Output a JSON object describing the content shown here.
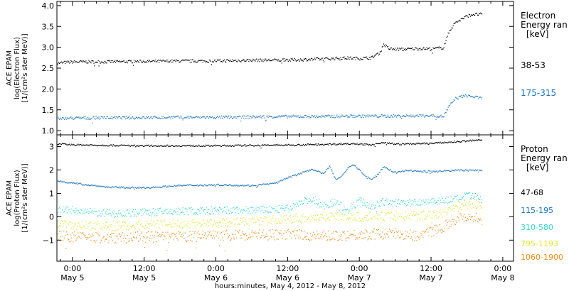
{
  "chart_data": {
    "type": "scatter",
    "xaxis": {
      "title": "hours:minutes, May  4, 2012 - May  8, 2012",
      "ticks": [
        {
          "t": 0,
          "time": "0:00",
          "day": "May 5"
        },
        {
          "t": 12,
          "time": "12:00",
          "day": "May 5"
        },
        {
          "t": 24,
          "time": "0:00",
          "day": "May 6"
        },
        {
          "t": 36,
          "time": "12:00",
          "day": "May 6"
        },
        {
          "t": 48,
          "time": "0:00",
          "day": "May 7"
        },
        {
          "t": 60,
          "time": "12:00",
          "day": "May 7"
        },
        {
          "t": 72,
          "time": "0:00",
          "day": "May 8"
        }
      ],
      "xlim_hours_from_may5": [
        -2.6,
        73.8
      ]
    },
    "panels": [
      {
        "id": "electron",
        "ylabel": [
          "ACE EPAM",
          "log(Electron Flux)",
          "[1/(cm²s ster MeV)]"
        ],
        "ylim": [
          0.9,
          4.1
        ],
        "yticks": [
          "1.0",
          "1.5",
          "2.0",
          "2.5",
          "3.0",
          "3.5",
          "4.0"
        ],
        "ytick_values": [
          1.0,
          1.5,
          2.0,
          2.5,
          3.0,
          3.5,
          4.0
        ],
        "legend_title": [
          "Electron",
          "Energy ran",
          "[keV]"
        ],
        "series": [
          {
            "name": "38-53",
            "color": "#000000",
            "x": [
              -2.6,
              0,
              6,
              12,
              18,
              24,
              30,
              36,
              42,
              45,
              46.5,
              48,
              50,
              51.5,
              52,
              53,
              55,
              58,
              60,
              62,
              63,
              64,
              65,
              66,
              67,
              68.5
            ],
            "y": [
              2.63,
              2.66,
              2.66,
              2.67,
              2.68,
              2.68,
              2.7,
              2.7,
              2.73,
              2.75,
              2.75,
              2.74,
              2.76,
              2.9,
              3.08,
              2.97,
              2.96,
              2.98,
              2.97,
              3.0,
              3.4,
              3.6,
              3.68,
              3.76,
              3.8,
              3.8
            ]
          },
          {
            "name": "175-315",
            "color": "#1c75c4",
            "x": [
              -2.6,
              0,
              6,
              12,
              18,
              24,
              30,
              36,
              42,
              48,
              54,
              60,
              62,
              63,
              64,
              65,
              66,
              68.5
            ],
            "y": [
              1.3,
              1.31,
              1.32,
              1.32,
              1.33,
              1.33,
              1.34,
              1.35,
              1.35,
              1.36,
              1.36,
              1.37,
              1.35,
              1.6,
              1.78,
              1.83,
              1.85,
              1.78
            ]
          }
        ]
      },
      {
        "id": "proton",
        "ylabel": [
          "ACE EPAM",
          "log(Proton Flux)",
          "[1/(cm²s ster MeV)]"
        ],
        "ylim": [
          -1.9,
          3.5
        ],
        "yticks": [
          "−1",
          "0",
          "1",
          "2",
          "3"
        ],
        "ytick_values": [
          -1,
          0,
          1,
          2,
          3
        ],
        "legend_title": [
          "Proton",
          "Energy ran",
          "[keV]"
        ],
        "series": [
          {
            "name": "47-68",
            "color": "#000000",
            "x": [
              -2.6,
              0,
              12,
              24,
              36,
              44,
              47,
              50,
              52,
              54,
              60,
              64,
              68.5
            ],
            "y": [
              3.13,
              3.09,
              3.05,
              3.05,
              3.08,
              3.12,
              3.15,
              3.08,
              3.2,
              3.12,
              3.15,
              3.22,
              3.3
            ]
          },
          {
            "name": "115-195",
            "color": "#1c75c4",
            "x": [
              -2.6,
              0,
              6,
              12,
              18,
              24,
              30,
              34,
              36,
              38,
              40,
              42,
              43,
              44,
              45,
              46,
              47,
              48,
              49,
              50,
              51,
              52,
              54,
              56,
              58,
              60,
              64,
              68.5
            ],
            "y": [
              1.55,
              1.45,
              1.28,
              1.25,
              1.35,
              1.38,
              1.35,
              1.45,
              1.7,
              1.85,
              2.05,
              1.85,
              2.2,
              1.6,
              1.75,
              2.1,
              2.25,
              2.0,
              1.75,
              1.62,
              1.8,
              2.15,
              1.9,
              2.0,
              1.95,
              1.95,
              2.0,
              2.0
            ]
          },
          {
            "name": "310-580",
            "color": "#35d6d0",
            "x": [
              -2.6,
              0,
              6,
              12,
              18,
              24,
              30,
              36,
              38,
              40,
              42,
              44,
              46,
              48,
              50,
              52,
              56,
              60,
              64,
              66,
              68.5
            ],
            "y": [
              0.35,
              0.28,
              0.15,
              0.2,
              0.25,
              0.28,
              0.3,
              0.35,
              0.6,
              0.8,
              0.5,
              0.65,
              0.3,
              0.7,
              0.45,
              0.65,
              0.6,
              0.7,
              0.75,
              0.9,
              0.8
            ]
          },
          {
            "name": "795-1193",
            "color": "#dde72c",
            "x": [
              -2.6,
              0,
              6,
              12,
              18,
              24,
              30,
              36,
              42,
              48,
              54,
              60,
              62,
              64,
              66,
              68.5
            ],
            "y": [
              -0.25,
              -0.32,
              -0.4,
              -0.32,
              -0.3,
              -0.25,
              -0.18,
              -0.1,
              0.05,
              0.0,
              0.05,
              0.1,
              0.2,
              0.4,
              0.55,
              0.55
            ]
          },
          {
            "name": "1060-1900",
            "color": "#f08c18",
            "x": [
              -2.6,
              0,
              6,
              12,
              18,
              24,
              30,
              36,
              42,
              48,
              54,
              58,
              60,
              62,
              64,
              66,
              68.5
            ],
            "y": [
              -0.8,
              -0.85,
              -0.9,
              -0.85,
              -0.85,
              -0.8,
              -0.75,
              -0.75,
              -0.8,
              -0.75,
              -0.7,
              -0.8,
              -0.6,
              -0.4,
              -0.1,
              0.05,
              -0.1
            ]
          }
        ]
      }
    ]
  }
}
